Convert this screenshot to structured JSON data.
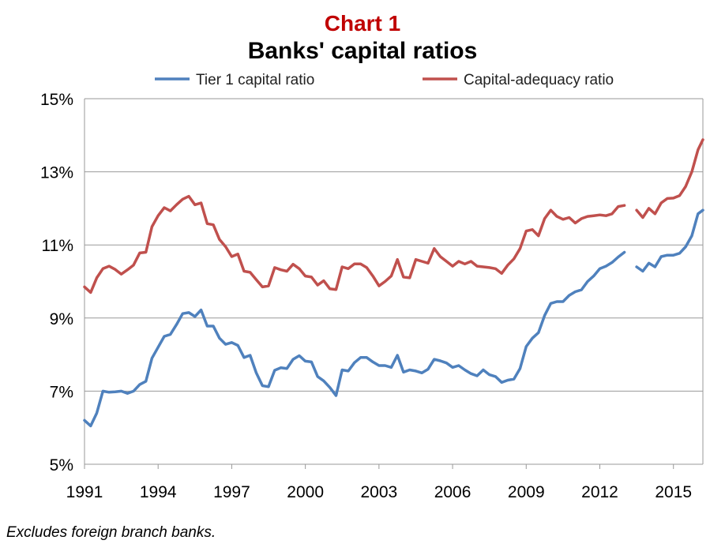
{
  "chart_data": {
    "type": "line",
    "title": "Chart 1",
    "subtitle": "Banks' capital ratios",
    "footnote": "Excludes foreign branch banks.",
    "xlim": [
      1991,
      2016.2
    ],
    "ylim": [
      5,
      15
    ],
    "x_ticks": [
      1991,
      1994,
      1997,
      2000,
      2003,
      2006,
      2009,
      2012,
      2015
    ],
    "x_tick_labels": [
      "1991",
      "1994",
      "1997",
      "2000",
      "2003",
      "2006",
      "2009",
      "2012",
      "2015"
    ],
    "y_ticks": [
      5,
      7,
      9,
      11,
      13,
      15
    ],
    "y_tick_labels": [
      "5%",
      "7%",
      "9%",
      "11%",
      "13%",
      "15%"
    ],
    "grid": "horizontal",
    "legend_position": "top",
    "series": [
      {
        "name": "Tier 1 capital ratio",
        "color": "#4f81bd",
        "segments": [
          [
            [
              1991.0,
              6.2
            ],
            [
              1991.25,
              6.05
            ],
            [
              1991.5,
              6.4
            ],
            [
              1991.75,
              7.0
            ],
            [
              1992.0,
              6.97
            ],
            [
              1992.25,
              6.98
            ],
            [
              1992.5,
              7.0
            ],
            [
              1992.75,
              6.94
            ],
            [
              1993.0,
              7.0
            ],
            [
              1993.25,
              7.18
            ],
            [
              1993.5,
              7.27
            ],
            [
              1993.75,
              7.9
            ],
            [
              1994.0,
              8.2
            ],
            [
              1994.25,
              8.5
            ],
            [
              1994.5,
              8.55
            ],
            [
              1994.75,
              8.82
            ],
            [
              1995.0,
              9.12
            ],
            [
              1995.25,
              9.15
            ],
            [
              1995.5,
              9.04
            ],
            [
              1995.75,
              9.22
            ],
            [
              1996.0,
              8.78
            ],
            [
              1996.25,
              8.78
            ],
            [
              1996.5,
              8.45
            ],
            [
              1996.75,
              8.28
            ],
            [
              1997.0,
              8.33
            ],
            [
              1997.25,
              8.25
            ],
            [
              1997.5,
              7.92
            ],
            [
              1997.75,
              7.98
            ],
            [
              1998.0,
              7.5
            ],
            [
              1998.25,
              7.15
            ],
            [
              1998.5,
              7.12
            ],
            [
              1998.75,
              7.57
            ],
            [
              1999.0,
              7.64
            ],
            [
              1999.25,
              7.62
            ],
            [
              1999.5,
              7.87
            ],
            [
              1999.75,
              7.97
            ],
            [
              2000.0,
              7.82
            ],
            [
              2000.25,
              7.8
            ],
            [
              2000.5,
              7.4
            ],
            [
              2000.75,
              7.28
            ],
            [
              2001.0,
              7.1
            ],
            [
              2001.25,
              6.88
            ],
            [
              2001.5,
              7.58
            ],
            [
              2001.75,
              7.55
            ],
            [
              2002.0,
              7.78
            ],
            [
              2002.25,
              7.92
            ],
            [
              2002.5,
              7.92
            ],
            [
              2002.75,
              7.8
            ],
            [
              2003.0,
              7.7
            ],
            [
              2003.25,
              7.7
            ],
            [
              2003.5,
              7.65
            ],
            [
              2003.75,
              7.98
            ],
            [
              2004.0,
              7.52
            ],
            [
              2004.25,
              7.58
            ],
            [
              2004.5,
              7.55
            ],
            [
              2004.75,
              7.5
            ],
            [
              2005.0,
              7.6
            ],
            [
              2005.25,
              7.87
            ],
            [
              2005.5,
              7.83
            ],
            [
              2005.75,
              7.77
            ],
            [
              2006.0,
              7.65
            ],
            [
              2006.25,
              7.7
            ],
            [
              2006.5,
              7.58
            ],
            [
              2006.75,
              7.48
            ],
            [
              2007.0,
              7.42
            ],
            [
              2007.25,
              7.58
            ],
            [
              2007.5,
              7.45
            ],
            [
              2007.75,
              7.4
            ],
            [
              2008.0,
              7.24
            ],
            [
              2008.25,
              7.3
            ],
            [
              2008.5,
              7.33
            ],
            [
              2008.75,
              7.62
            ],
            [
              2009.0,
              8.22
            ],
            [
              2009.25,
              8.45
            ],
            [
              2009.5,
              8.6
            ],
            [
              2009.75,
              9.07
            ],
            [
              2010.0,
              9.4
            ],
            [
              2010.25,
              9.45
            ],
            [
              2010.5,
              9.45
            ],
            [
              2010.75,
              9.62
            ],
            [
              2011.0,
              9.72
            ],
            [
              2011.25,
              9.77
            ],
            [
              2011.5,
              10.0
            ],
            [
              2011.75,
              10.15
            ],
            [
              2012.0,
              10.35
            ],
            [
              2012.25,
              10.42
            ],
            [
              2012.5,
              10.52
            ],
            [
              2012.75,
              10.67
            ],
            [
              2013.0,
              10.8
            ]
          ],
          [
            [
              2013.5,
              10.4
            ],
            [
              2013.75,
              10.28
            ],
            [
              2014.0,
              10.5
            ],
            [
              2014.25,
              10.4
            ],
            [
              2014.5,
              10.68
            ],
            [
              2014.75,
              10.72
            ],
            [
              2015.0,
              10.72
            ],
            [
              2015.25,
              10.77
            ],
            [
              2015.5,
              10.95
            ],
            [
              2015.75,
              11.25
            ],
            [
              2016.0,
              11.85
            ],
            [
              2016.2,
              11.95
            ]
          ]
        ]
      },
      {
        "name": "Capital-adequacy ratio",
        "color": "#c0504d",
        "segments": [
          [
            [
              1991.0,
              9.85
            ],
            [
              1991.25,
              9.7
            ],
            [
              1991.5,
              10.1
            ],
            [
              1991.75,
              10.35
            ],
            [
              1992.0,
              10.42
            ],
            [
              1992.25,
              10.33
            ],
            [
              1992.5,
              10.2
            ],
            [
              1992.75,
              10.32
            ],
            [
              1993.0,
              10.45
            ],
            [
              1993.25,
              10.78
            ],
            [
              1993.5,
              10.8
            ],
            [
              1993.75,
              11.5
            ],
            [
              1994.0,
              11.8
            ],
            [
              1994.25,
              12.02
            ],
            [
              1994.5,
              11.93
            ],
            [
              1994.75,
              12.1
            ],
            [
              1995.0,
              12.25
            ],
            [
              1995.25,
              12.33
            ],
            [
              1995.5,
              12.1
            ],
            [
              1995.75,
              12.15
            ],
            [
              1996.0,
              11.58
            ],
            [
              1996.25,
              11.55
            ],
            [
              1996.5,
              11.15
            ],
            [
              1996.75,
              10.95
            ],
            [
              1997.0,
              10.68
            ],
            [
              1997.25,
              10.75
            ],
            [
              1997.5,
              10.28
            ],
            [
              1997.75,
              10.25
            ],
            [
              1998.0,
              10.05
            ],
            [
              1998.25,
              9.85
            ],
            [
              1998.5,
              9.88
            ],
            [
              1998.75,
              10.38
            ],
            [
              1999.0,
              10.32
            ],
            [
              1999.25,
              10.28
            ],
            [
              1999.5,
              10.47
            ],
            [
              1999.75,
              10.35
            ],
            [
              2000.0,
              10.15
            ],
            [
              2000.25,
              10.12
            ],
            [
              2000.5,
              9.9
            ],
            [
              2000.75,
              10.02
            ],
            [
              2001.0,
              9.8
            ],
            [
              2001.25,
              9.78
            ],
            [
              2001.5,
              10.4
            ],
            [
              2001.75,
              10.35
            ],
            [
              2002.0,
              10.48
            ],
            [
              2002.25,
              10.48
            ],
            [
              2002.5,
              10.38
            ],
            [
              2002.75,
              10.15
            ],
            [
              2003.0,
              9.88
            ],
            [
              2003.25,
              10.0
            ],
            [
              2003.5,
              10.15
            ],
            [
              2003.75,
              10.6
            ],
            [
              2004.0,
              10.12
            ],
            [
              2004.25,
              10.1
            ],
            [
              2004.5,
              10.6
            ],
            [
              2004.75,
              10.55
            ],
            [
              2005.0,
              10.5
            ],
            [
              2005.25,
              10.9
            ],
            [
              2005.5,
              10.68
            ],
            [
              2005.75,
              10.55
            ],
            [
              2006.0,
              10.42
            ],
            [
              2006.25,
              10.55
            ],
            [
              2006.5,
              10.48
            ],
            [
              2006.75,
              10.55
            ],
            [
              2007.0,
              10.42
            ],
            [
              2007.25,
              10.4
            ],
            [
              2007.5,
              10.38
            ],
            [
              2007.75,
              10.35
            ],
            [
              2008.0,
              10.22
            ],
            [
              2008.25,
              10.45
            ],
            [
              2008.5,
              10.62
            ],
            [
              2008.75,
              10.9
            ],
            [
              2009.0,
              11.38
            ],
            [
              2009.25,
              11.42
            ],
            [
              2009.5,
              11.25
            ],
            [
              2009.75,
              11.72
            ],
            [
              2010.0,
              11.95
            ],
            [
              2010.25,
              11.78
            ],
            [
              2010.5,
              11.7
            ],
            [
              2010.75,
              11.75
            ],
            [
              2011.0,
              11.6
            ],
            [
              2011.25,
              11.72
            ],
            [
              2011.5,
              11.78
            ],
            [
              2011.75,
              11.8
            ],
            [
              2012.0,
              11.82
            ],
            [
              2012.25,
              11.8
            ],
            [
              2012.5,
              11.85
            ],
            [
              2012.75,
              12.05
            ],
            [
              2013.0,
              12.08
            ]
          ],
          [
            [
              2013.5,
              11.95
            ],
            [
              2013.75,
              11.75
            ],
            [
              2014.0,
              12.0
            ],
            [
              2014.25,
              11.85
            ],
            [
              2014.5,
              12.15
            ],
            [
              2014.75,
              12.27
            ],
            [
              2015.0,
              12.28
            ],
            [
              2015.25,
              12.35
            ],
            [
              2015.5,
              12.6
            ],
            [
              2015.75,
              13.0
            ],
            [
              2016.0,
              13.6
            ],
            [
              2016.2,
              13.88
            ]
          ]
        ]
      }
    ]
  },
  "theme": {
    "title_color": "#c00000",
    "axis_color": "#999999",
    "grid_color": "#999999"
  }
}
